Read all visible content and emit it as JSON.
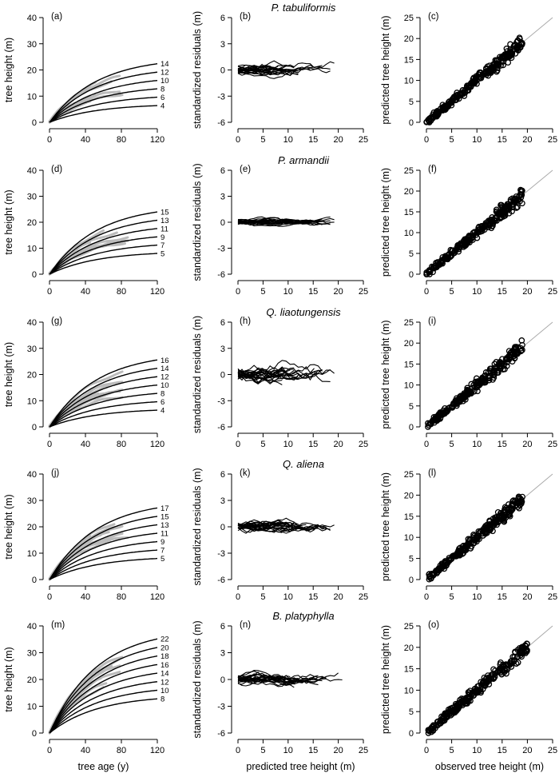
{
  "chart_data": {
    "type": "panel-grid",
    "columns": {
      "a": {
        "xlabel": "tree age (y)",
        "ylabel": "tree height (m)",
        "xlim": [
          0,
          120
        ],
        "ylim": [
          0,
          40
        ],
        "xticks": [
          "0",
          "40",
          "80",
          "120"
        ],
        "yticks": [
          "0",
          "10",
          "20",
          "30",
          "40"
        ]
      },
      "b": {
        "xlabel": "predicted tree height (m)",
        "ylabel": "standardized residuals (m)",
        "xlim": [
          0,
          25
        ],
        "ylim": [
          -6,
          6
        ],
        "xticks": [
          "0",
          "5",
          "10",
          "15",
          "20",
          "25"
        ],
        "yticks": [
          "-6",
          "-3",
          "0",
          "3",
          "6"
        ]
      },
      "c": {
        "xlabel": "observed tree height (m)",
        "ylabel": "predicted tree height (m)",
        "xlim": [
          0,
          25
        ],
        "ylim": [
          0,
          25
        ],
        "xticks": [
          "0",
          "5",
          "10",
          "15",
          "20",
          "25"
        ],
        "yticks": [
          "0",
          "5",
          "10",
          "15",
          "20",
          "25"
        ]
      }
    },
    "rows": [
      {
        "species": "P. tabuliformis",
        "labels": [
          "(a)",
          "(b)",
          "(c)"
        ],
        "site_index": [
          "4",
          "6",
          "8",
          "10",
          "12",
          "14"
        ],
        "si_values": [
          4,
          6,
          8,
          10,
          12,
          14
        ],
        "obs_max": 19
      },
      {
        "species": "P. armandii",
        "labels": [
          "(d)",
          "(e)",
          "(f)"
        ],
        "site_index": [
          "5",
          "7",
          "9",
          "11",
          "13",
          "15"
        ],
        "si_values": [
          5,
          7,
          9,
          11,
          13,
          15
        ],
        "obs_max": 19
      },
      {
        "species": "Q. liaotungensis",
        "labels": [
          "(g)",
          "(h)",
          "(i)"
        ],
        "site_index": [
          "4",
          "6",
          "8",
          "10",
          "12",
          "14",
          "16"
        ],
        "si_values": [
          4,
          6,
          8,
          10,
          12,
          14,
          16
        ],
        "obs_max": 19
      },
      {
        "species": "Q. aliena",
        "labels": [
          "(j)",
          "(k)",
          "(l)"
        ],
        "site_index": [
          "5",
          "7",
          "9",
          "11",
          "13",
          "15",
          "17"
        ],
        "si_values": [
          5,
          7,
          9,
          11,
          13,
          15,
          17
        ],
        "obs_max": 19
      },
      {
        "species": "B. platyphylla",
        "labels": [
          "(m)",
          "(n)",
          "(o)"
        ],
        "site_index": [
          "8",
          "10",
          "12",
          "14",
          "16",
          "18",
          "20",
          "22"
        ],
        "si_values": [
          8,
          10,
          12,
          14,
          16,
          18,
          20,
          22
        ],
        "obs_max": 20
      }
    ],
    "x_axis_titles": [
      "tree age (y)",
      "predicted tree height (m)",
      "observed tree height (m)"
    ],
    "colors": {
      "curves": "#000000",
      "observed": "#bbbbbb",
      "one_to_one": "#aaaaaa"
    }
  }
}
